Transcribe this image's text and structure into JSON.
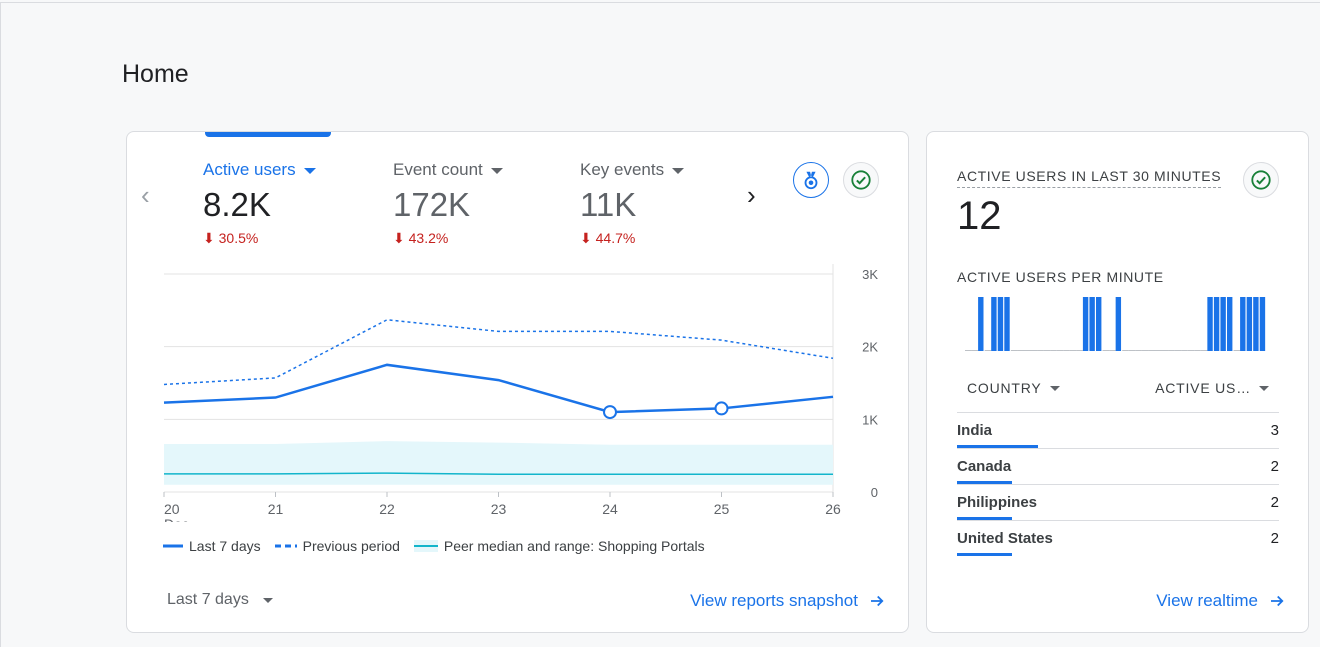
{
  "page": {
    "title": "Home"
  },
  "overview": {
    "metrics": [
      {
        "label": "Active users",
        "value": "8.2K",
        "change": "30.5%",
        "active": true
      },
      {
        "label": "Event count",
        "value": "172K",
        "change": "43.2%",
        "active": false
      },
      {
        "label": "Key events",
        "value": "11K",
        "change": "44.7%",
        "active": false
      }
    ],
    "prev_icon": "chevron-left-icon",
    "next_icon": "chevron-right-icon",
    "insights_icon": "insights-badge-icon",
    "status_icon": "check-circle-icon",
    "legend": {
      "last7": "Last 7 days",
      "previous": "Previous period",
      "peer": "Peer median and range: Shopping Portals"
    },
    "range_select": "Last 7 days",
    "view_link": "View reports snapshot"
  },
  "chart_data": {
    "type": "line",
    "x": [
      "20",
      "21",
      "22",
      "23",
      "24",
      "25",
      "26"
    ],
    "x_sublabel_first": "Dec",
    "y_ticks": [
      "0",
      "1K",
      "2K",
      "3K"
    ],
    "ylim": [
      0,
      3000
    ],
    "grid": true,
    "colors": {
      "primary": "#1a73e8",
      "peer_fill": "#e4f7fb",
      "peer_line": "#12b5cb"
    },
    "series": [
      {
        "name": "Last 7 days",
        "style": "solid",
        "values": [
          1230,
          1300,
          1750,
          1540,
          1100,
          1150,
          1310
        ]
      },
      {
        "name": "Previous period",
        "style": "dashed",
        "values": [
          1480,
          1570,
          2370,
          2210,
          2210,
          2090,
          1840
        ]
      },
      {
        "name": "Peer median and range: Shopping Portals",
        "style": "band",
        "median": [
          250,
          250,
          260,
          245,
          245,
          245,
          245
        ],
        "low": [
          100,
          100,
          100,
          100,
          100,
          100,
          100
        ],
        "high": [
          660,
          660,
          700,
          680,
          650,
          650,
          650
        ]
      }
    ],
    "highlighted_points": [
      4,
      5
    ]
  },
  "realtime": {
    "title": "ACTIVE USERS IN LAST 30 MINUTES",
    "value": "12",
    "subtitle": "ACTIVE USERS PER MINUTE",
    "status_icon": "check-circle-icon",
    "per_minute": [
      0,
      0,
      1,
      0,
      1,
      1,
      1,
      0,
      0,
      0,
      0,
      0,
      0,
      0,
      0,
      0,
      0,
      0,
      1,
      1,
      1,
      0,
      0,
      1,
      0,
      0,
      0,
      0,
      0,
      0,
      0,
      0,
      0,
      0,
      0,
      0,
      0,
      1,
      1,
      1,
      1,
      0,
      1,
      1,
      1,
      1
    ],
    "columns": {
      "country": "COUNTRY",
      "users": "ACTIVE US…"
    },
    "rows": [
      {
        "country": "India",
        "users": "3",
        "share": 0.25
      },
      {
        "country": "Canada",
        "users": "2",
        "share": 0.17
      },
      {
        "country": "Philippines",
        "users": "2",
        "share": 0.17
      },
      {
        "country": "United States",
        "users": "2",
        "share": 0.17
      }
    ],
    "view_link": "View realtime"
  }
}
